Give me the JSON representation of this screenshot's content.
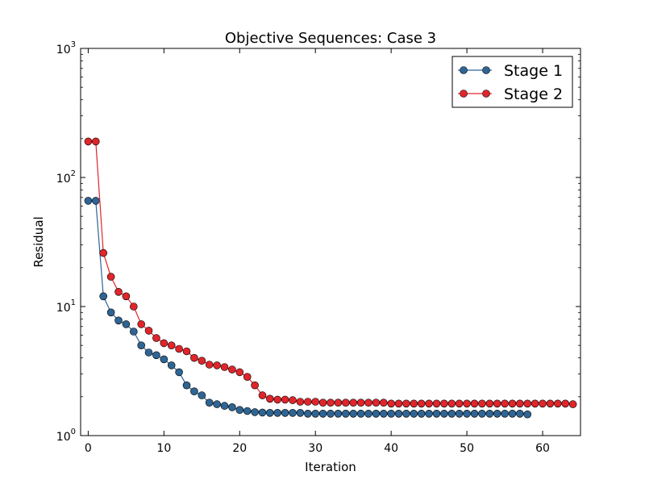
{
  "chart_data": {
    "type": "line",
    "title": "Objective Sequences: Case 3",
    "xlabel": "Iteration",
    "ylabel": "Residual",
    "xlim": [
      -1,
      65
    ],
    "ylim": [
      1,
      1000
    ],
    "yscale": "log",
    "grid": false,
    "legend_position": "top-right",
    "x_ticks": [
      0,
      10,
      20,
      30,
      40,
      50,
      60
    ],
    "y_ticks": [
      {
        "value": 1,
        "base": "10",
        "exp": "0"
      },
      {
        "value": 10,
        "base": "10",
        "exp": "1"
      },
      {
        "value": 100,
        "base": "10",
        "exp": "2"
      },
      {
        "value": 1000,
        "base": "10",
        "exp": "3"
      }
    ],
    "series": [
      {
        "name": "Stage 1",
        "color": "#2e6594",
        "x": [
          0,
          1,
          2,
          3,
          4,
          5,
          6,
          7,
          8,
          9,
          10,
          11,
          12,
          13,
          14,
          15,
          16,
          17,
          18,
          19,
          20,
          21,
          22,
          23,
          24,
          25,
          26,
          27,
          28,
          29,
          30,
          31,
          32,
          33,
          34,
          35,
          36,
          37,
          38,
          39,
          40,
          41,
          42,
          43,
          44,
          45,
          46,
          47,
          48,
          49,
          50,
          51,
          52,
          53,
          54,
          55,
          56,
          57,
          58
        ],
        "y": [
          66,
          66,
          12.0,
          9.0,
          7.8,
          7.3,
          6.4,
          5.0,
          4.4,
          4.2,
          3.9,
          3.5,
          3.1,
          2.45,
          2.2,
          2.05,
          1.8,
          1.75,
          1.7,
          1.66,
          1.58,
          1.55,
          1.52,
          1.51,
          1.5,
          1.5,
          1.5,
          1.5,
          1.5,
          1.48,
          1.48,
          1.48,
          1.48,
          1.48,
          1.48,
          1.48,
          1.48,
          1.48,
          1.48,
          1.48,
          1.48,
          1.48,
          1.48,
          1.48,
          1.48,
          1.48,
          1.48,
          1.48,
          1.48,
          1.48,
          1.48,
          1.48,
          1.48,
          1.48,
          1.48,
          1.48,
          1.48,
          1.48,
          1.46
        ]
      },
      {
        "name": "Stage 2",
        "color": "#e0252b",
        "x": [
          0,
          1,
          2,
          3,
          4,
          5,
          6,
          7,
          8,
          9,
          10,
          11,
          12,
          13,
          14,
          15,
          16,
          17,
          18,
          19,
          20,
          21,
          22,
          23,
          24,
          25,
          26,
          27,
          28,
          29,
          30,
          31,
          32,
          33,
          34,
          35,
          36,
          37,
          38,
          39,
          40,
          41,
          42,
          43,
          44,
          45,
          46,
          47,
          48,
          49,
          50,
          51,
          52,
          53,
          54,
          55,
          56,
          57,
          58,
          59,
          60,
          61,
          62,
          63,
          64
        ],
        "y": [
          190,
          190,
          26,
          17,
          13,
          12,
          10,
          7.3,
          6.5,
          5.7,
          5.2,
          5.0,
          4.7,
          4.5,
          4.0,
          3.8,
          3.55,
          3.5,
          3.4,
          3.25,
          3.1,
          2.85,
          2.45,
          2.05,
          1.93,
          1.9,
          1.9,
          1.88,
          1.83,
          1.83,
          1.83,
          1.8,
          1.8,
          1.8,
          1.8,
          1.8,
          1.8,
          1.8,
          1.8,
          1.8,
          1.77,
          1.77,
          1.77,
          1.77,
          1.77,
          1.77,
          1.77,
          1.77,
          1.77,
          1.77,
          1.77,
          1.77,
          1.77,
          1.77,
          1.77,
          1.77,
          1.77,
          1.77,
          1.77,
          1.77,
          1.77,
          1.77,
          1.77,
          1.77,
          1.75
        ]
      }
    ]
  }
}
